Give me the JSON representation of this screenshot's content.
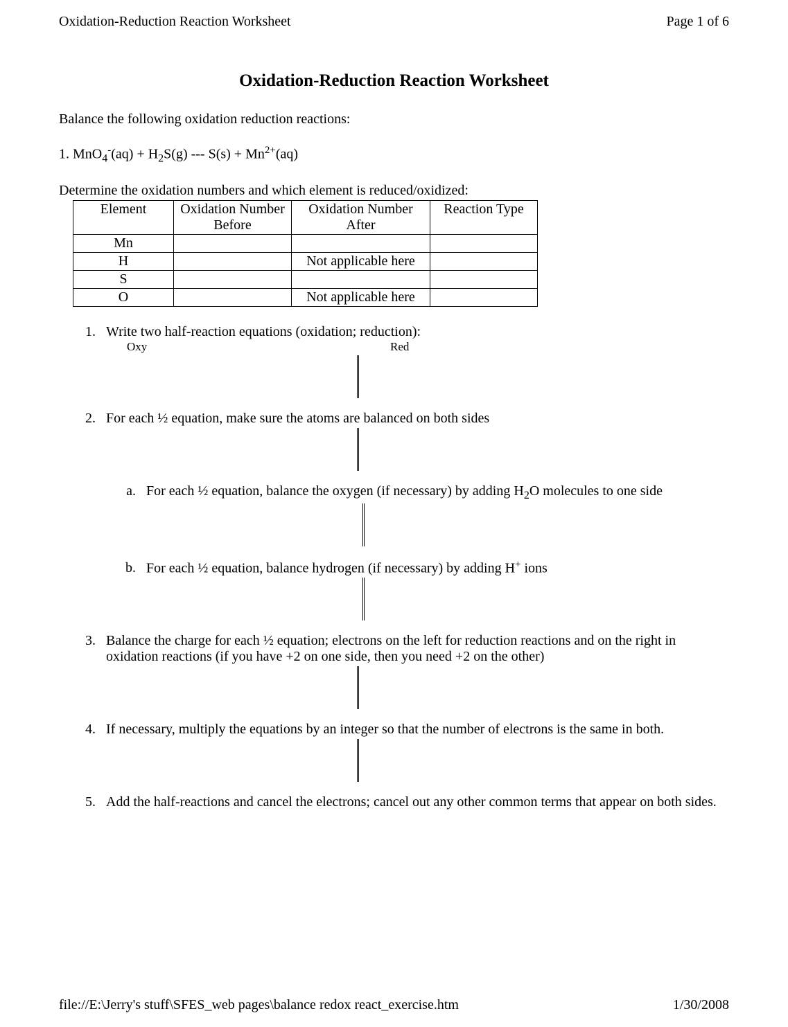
{
  "header": {
    "left": "Oxidation-Reduction Reaction Worksheet",
    "right": "Page 1 of 6"
  },
  "title": "Oxidation-Reduction Reaction Worksheet",
  "intro": "Balance the following oxidation reduction reactions:",
  "equation": {
    "prefix": "1. MnO",
    "sub1": "4",
    "sup1": "-",
    "mid1": "(aq) + H",
    "sub2": "2",
    "mid2": "S(g) ---  S(s) + Mn",
    "sup2": "2+",
    "end": "(aq)"
  },
  "determine": "Determine the oxidation numbers and which element is reduced/oxidized:",
  "table": {
    "headers": [
      "Element",
      "Oxidation Number Before",
      "Oxidation Number After",
      "Reaction Type"
    ],
    "rows": [
      [
        "Mn",
        "",
        "",
        ""
      ],
      [
        "H",
        "",
        "Not applicable here",
        ""
      ],
      [
        "S",
        "",
        "",
        ""
      ],
      [
        "O",
        "",
        "Not applicable here",
        ""
      ]
    ]
  },
  "steps": {
    "s1": "Write two half-reaction equations (oxidation; reduction):",
    "s1_oxy": "Oxy",
    "s1_red": "Red",
    "s2": "For each ½ equation, make sure the atoms are balanced on both sides",
    "s2a_pre": "For each ½ equation, balance the oxygen (if necessary) by adding H",
    "s2a_sub": "2",
    "s2a_post": "O molecules to one side",
    "s2b_pre": "For each ½ equation, balance hydrogen (if necessary) by adding H",
    "s2b_sup": "+",
    "s2b_post": " ions",
    "s3": "Balance the charge for each ½ equation; electrons on the left for reduction reactions and on the right in oxidation reactions (if you have +2 on one side, then you need +2 on the other)",
    "s4": "If necessary, multiply the equations by an integer so that the number of electrons is the same in both.",
    "s5": "Add the half-reactions and cancel the electrons; cancel out any other common terms that appear on both sides."
  },
  "footer": {
    "left": "file://E:\\Jerry's stuff\\SFES_web pages\\balance redox react_exercise.htm",
    "right": "1/30/2008"
  }
}
